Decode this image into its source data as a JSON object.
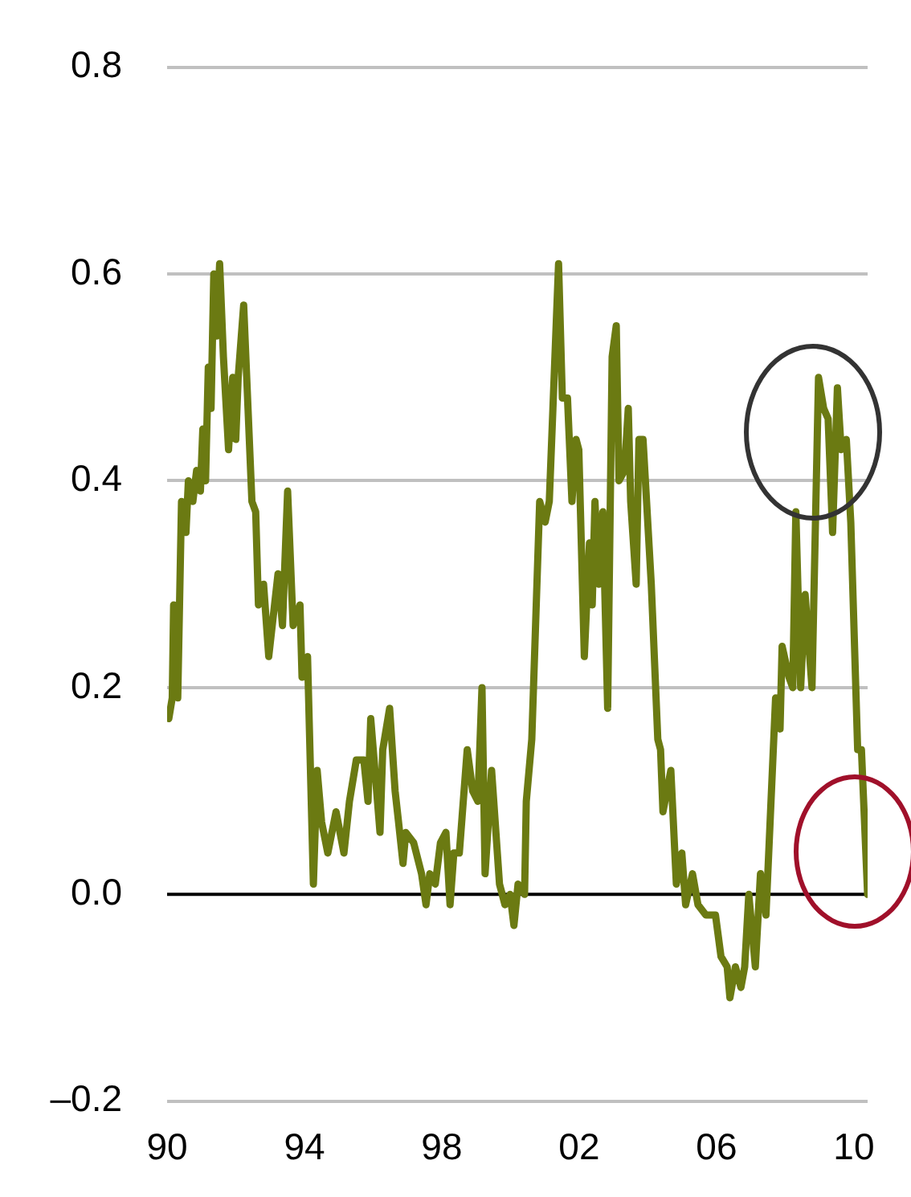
{
  "chart_data": {
    "type": "line",
    "xlim": [
      1990,
      2010.4
    ],
    "ylim": [
      -0.2,
      0.8
    ],
    "xticks": [
      {
        "value": 1990,
        "label": "90"
      },
      {
        "value": 1994,
        "label": "94"
      },
      {
        "value": 1998,
        "label": "98"
      },
      {
        "value": 2002,
        "label": "02"
      },
      {
        "value": 2006,
        "label": "06"
      },
      {
        "value": 2010,
        "label": "10"
      }
    ],
    "yticks": [
      {
        "value": -0.2,
        "label": "–0.2"
      },
      {
        "value": 0,
        "label": "0.0"
      },
      {
        "value": 0.2,
        "label": "0.2"
      },
      {
        "value": 0.4,
        "label": "0.4"
      },
      {
        "value": 0.6,
        "label": "0.6"
      },
      {
        "value": 0.8,
        "label": "0.8"
      }
    ],
    "grid": "y",
    "legend": false,
    "marker": "none",
    "line_style": "solid",
    "ref_lines": [
      {
        "axis": "y",
        "value": 0,
        "color": "#000000"
      }
    ],
    "series": [
      {
        "color": "#6b7a12",
        "x": [
          1990.05,
          1990.15,
          1990.19,
          1990.31,
          1990.42,
          1990.55,
          1990.62,
          1990.75,
          1990.86,
          1990.97,
          1991.04,
          1991.12,
          1991.2,
          1991.28,
          1991.36,
          1991.44,
          1991.53,
          1991.64,
          1991.79,
          1991.91,
          1992,
          1992.07,
          1992.23,
          1992.47,
          1992.58,
          1992.66,
          1992.81,
          1992.96,
          1993.23,
          1993.36,
          1993.51,
          1993.67,
          1993.87,
          1993.93,
          1994.09,
          1994.26,
          1994.37,
          1994.5,
          1994.68,
          1994.92,
          1995.15,
          1995.31,
          1995.51,
          1995.73,
          1995.85,
          1995.93,
          1996.2,
          1996.28,
          1996.48,
          1996.64,
          1996.74,
          1996.87,
          1996.95,
          1997.18,
          1997.41,
          1997.54,
          1997.65,
          1997.81,
          1997.96,
          1998.12,
          1998.24,
          1998.35,
          1998.51,
          1998.74,
          1998.9,
          1999.05,
          1999.17,
          1999.26,
          1999.45,
          1999.68,
          1999.84,
          1999.99,
          2000.1,
          2000.22,
          2000.41,
          2000.46,
          2000.62,
          2000.85,
          2001.01,
          2001.13,
          2001.4,
          2001.51,
          2001.66,
          2001.79,
          2001.91,
          2001.99,
          2002.15,
          2002.3,
          2002.38,
          2002.46,
          2002.57,
          2002.69,
          2002.83,
          2002.96,
          2003.08,
          2003.16,
          2003.32,
          2003.43,
          2003.5,
          2003.66,
          2003.74,
          2003.86,
          2004.1,
          2004.29,
          2004.37,
          2004.44,
          2004.67,
          2004.83,
          2004.99,
          2005.1,
          2005.3,
          2005.46,
          2005.69,
          2005.97,
          2006.13,
          2006.31,
          2006.39,
          2006.55,
          2006.71,
          2006.82,
          2006.94,
          2007.13,
          2007.28,
          2007.44,
          2007.56,
          2007.72,
          2007.85,
          2007.91,
          2008.11,
          2008.22,
          2008.31,
          2008.45,
          2008.58,
          2008.78,
          2008.97,
          2009.12,
          2009.25,
          2009.38,
          2009.52,
          2009.63,
          2009.78,
          2009.91,
          2010.11,
          2010.22,
          2010.4
        ],
        "values": [
          0.17,
          0.19,
          0.28,
          0.19,
          0.38,
          0.35,
          0.4,
          0.38,
          0.41,
          0.39,
          0.45,
          0.4,
          0.51,
          0.47,
          0.6,
          0.54,
          0.61,
          0.52,
          0.43,
          0.5,
          0.44,
          0.5,
          0.57,
          0.38,
          0.37,
          0.28,
          0.3,
          0.23,
          0.31,
          0.26,
          0.39,
          0.26,
          0.28,
          0.21,
          0.23,
          0.01,
          0.12,
          0.07,
          0.04,
          0.08,
          0.04,
          0.09,
          0.13,
          0.13,
          0.09,
          0.17,
          0.06,
          0.14,
          0.18,
          0.1,
          0.07,
          0.03,
          0.06,
          0.05,
          0.02,
          -0.01,
          0.02,
          0.01,
          0.05,
          0.06,
          -0.01,
          0.04,
          0.04,
          0.14,
          0.1,
          0.09,
          0.2,
          0.02,
          0.12,
          0.01,
          -0.01,
          0,
          -0.03,
          0.01,
          0,
          0.09,
          0.15,
          0.38,
          0.36,
          0.38,
          0.61,
          0.48,
          0.48,
          0.38,
          0.44,
          0.43,
          0.23,
          0.34,
          0.28,
          0.38,
          0.3,
          0.37,
          0.18,
          0.52,
          0.55,
          0.4,
          0.41,
          0.47,
          0.38,
          0.3,
          0.44,
          0.44,
          0.3,
          0.15,
          0.14,
          0.08,
          0.12,
          0.01,
          0.04,
          -0.01,
          0.02,
          -0.01,
          -0.02,
          -0.02,
          -0.06,
          -0.07,
          -0.1,
          -0.07,
          -0.09,
          -0.07,
          0,
          -0.07,
          0.02,
          -0.02,
          0.07,
          0.19,
          0.16,
          0.24,
          0.21,
          0.2,
          0.37,
          0.2,
          0.29,
          0.2,
          0.5,
          0.47,
          0.46,
          0.35,
          0.49,
          0.43,
          0.44,
          0.36,
          0.14,
          0.14,
          0
        ]
      }
    ]
  }
}
